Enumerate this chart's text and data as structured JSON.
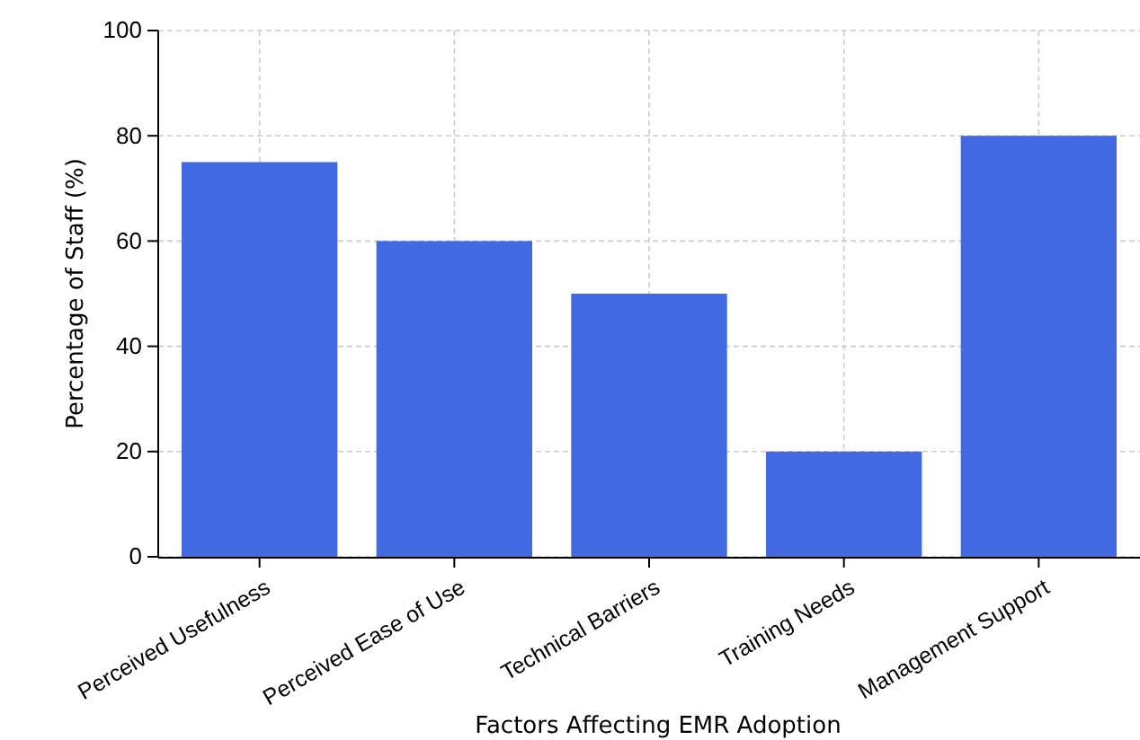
{
  "chart_data": {
    "type": "bar",
    "xlabel": "Factors Affecting EMR Adoption",
    "ylabel": "Percentage of Staff (%)",
    "categories": [
      "Perceived Usefulness",
      "Perceived Ease of Use",
      "Technical Barriers",
      "Training Needs",
      "Management Support"
    ],
    "values": [
      75,
      60,
      50,
      20,
      80
    ],
    "color": "#4169e1",
    "ylim": [
      0,
      100
    ],
    "yticks": [
      0,
      20,
      40,
      60,
      80,
      100
    ],
    "grid": true
  }
}
